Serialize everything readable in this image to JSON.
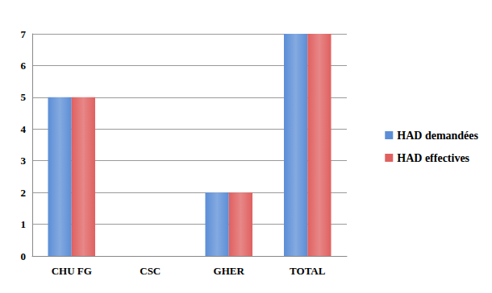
{
  "chart_data": {
    "type": "bar",
    "categories": [
      "CHU FG",
      "CSC",
      "GHER",
      "TOTAL"
    ],
    "series": [
      {
        "name": "HAD demandées",
        "color": "#5b8ed6",
        "values": [
          5,
          0,
          2,
          7
        ]
      },
      {
        "name": "HAD effectives",
        "color": "#e06060",
        "values": [
          5,
          0,
          2,
          7
        ]
      }
    ],
    "ylim": [
      0,
      7
    ],
    "yticks": [
      0,
      1,
      2,
      3,
      4,
      5,
      6,
      7
    ],
    "grid": true,
    "legend": "right"
  }
}
